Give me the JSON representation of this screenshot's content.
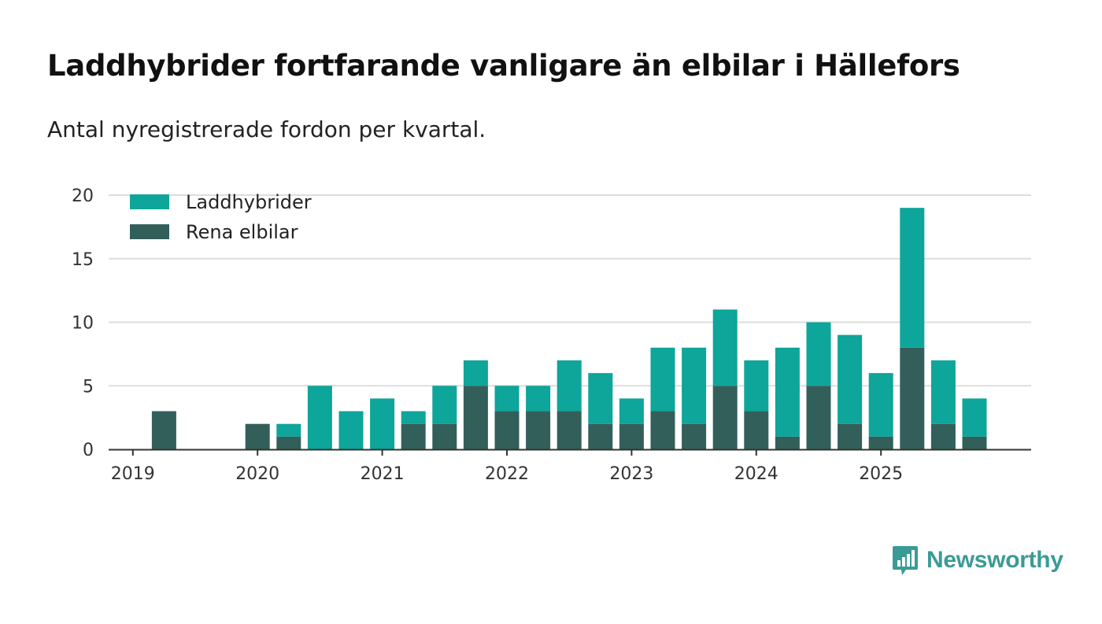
{
  "header": {
    "title": "Laddhybrider fortfarande vanligare än elbilar i Hällefors",
    "subtitle": "Antal nyregistrerade fordon per kvartal."
  },
  "colors": {
    "laddhybrider": "#0ea59a",
    "rena_elbilar": "#335f5a",
    "grid": "#dddddd",
    "axis": "#333333",
    "brand": "#3a9b96"
  },
  "chart_data": {
    "type": "bar",
    "stacked": true,
    "title": "Laddhybrider fortfarande vanligare än elbilar i Hällefors",
    "subtitle": "Antal nyregistrerade fordon per kvartal.",
    "xlabel": "",
    "ylabel": "",
    "ylim": [
      0,
      20
    ],
    "yticks": [
      "0",
      "5",
      "10",
      "15",
      "20"
    ],
    "grid": true,
    "legend_position": "top-left",
    "year_labels": [
      "2019",
      "2020",
      "2021",
      "2022",
      "2023",
      "2024",
      "2025"
    ],
    "categories": [
      "2019 Q1",
      "2019 Q2",
      "2019 Q3",
      "2019 Q4",
      "2020 Q1",
      "2020 Q2",
      "2020 Q3",
      "2020 Q4",
      "2021 Q1",
      "2021 Q2",
      "2021 Q3",
      "2021 Q4",
      "2022 Q1",
      "2022 Q2",
      "2022 Q3",
      "2022 Q4",
      "2023 Q1",
      "2023 Q2",
      "2023 Q3",
      "2023 Q4",
      "2024 Q1",
      "2024 Q2",
      "2024 Q3",
      "2024 Q4",
      "2025 Q1",
      "2025 Q2",
      "2025 Q3",
      "2025 Q4"
    ],
    "series": [
      {
        "name": "Rena elbilar",
        "color": "#335f5a",
        "values": [
          0,
          3,
          0,
          0,
          2,
          1,
          0,
          0,
          0,
          2,
          2,
          5,
          3,
          3,
          3,
          2,
          2,
          3,
          2,
          5,
          3,
          1,
          5,
          2,
          1,
          8,
          2,
          1
        ]
      },
      {
        "name": "Laddhybrider",
        "color": "#0ea59a",
        "values": [
          0,
          0,
          0,
          0,
          0,
          1,
          5,
          3,
          4,
          1,
          3,
          2,
          2,
          2,
          4,
          4,
          2,
          5,
          6,
          6,
          4,
          7,
          5,
          7,
          5,
          11,
          5,
          3
        ]
      }
    ],
    "legend": [
      "Laddhybrider",
      "Rena elbilar"
    ]
  },
  "footer": {
    "brand_name": "Newsworthy",
    "brand_icon": "chart-bubble-icon"
  }
}
